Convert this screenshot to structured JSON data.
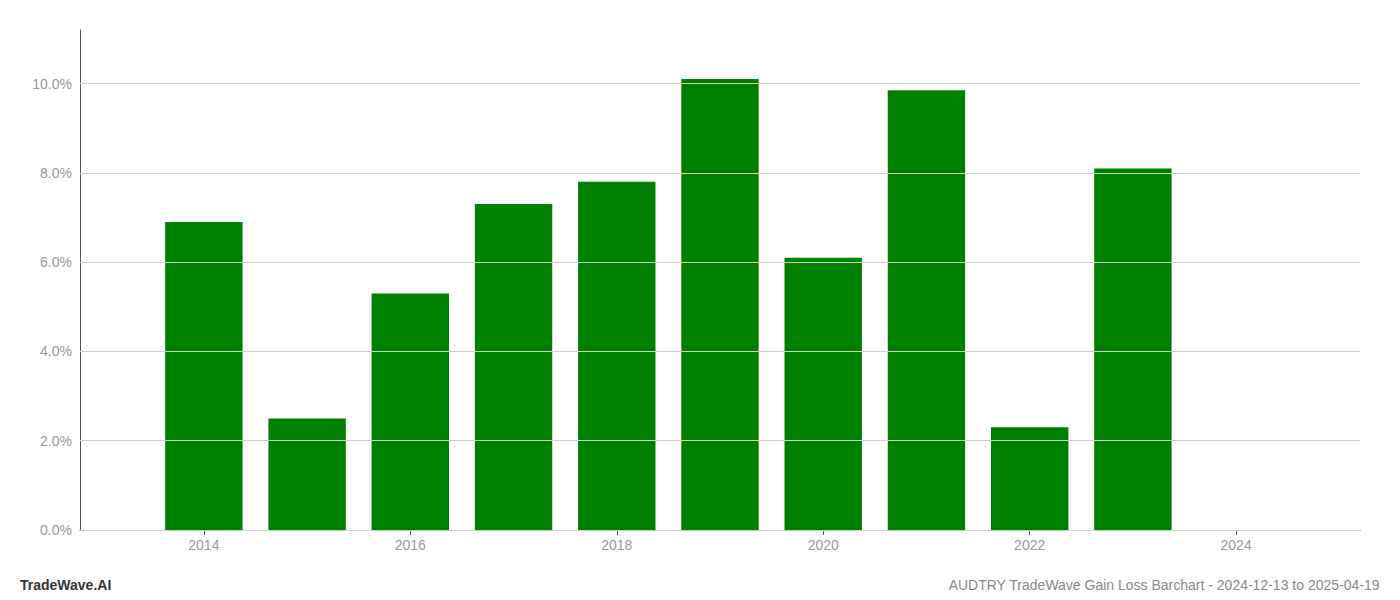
{
  "chart_data": {
    "type": "bar",
    "x": [
      2014,
      2015,
      2016,
      2017,
      2018,
      2019,
      2020,
      2021,
      2022,
      2023
    ],
    "values": [
      0.069,
      0.025,
      0.053,
      0.073,
      0.078,
      0.101,
      0.061,
      0.0985,
      0.023,
      0.081
    ],
    "color": "#008000",
    "xlim": [
      2012.8,
      2025.2
    ],
    "xticks": [
      2014,
      2016,
      2018,
      2020,
      2022,
      2024
    ],
    "ylim": [
      0,
      0.112
    ],
    "yticks": [
      {
        "value": 0.0,
        "label": "0.0%"
      },
      {
        "value": 0.02,
        "label": "2.0%"
      },
      {
        "value": 0.04,
        "label": "4.0%"
      },
      {
        "value": 0.06,
        "label": "6.0%"
      },
      {
        "value": 0.08,
        "label": "8.0%"
      },
      {
        "value": 0.1,
        "label": "10.0%"
      }
    ],
    "grid": true,
    "annotations": [
      "TradeWave.AI",
      "AUDTRY TradeWave Gain Loss Barchart - 2024-12-13 to 2025-04-19"
    ]
  }
}
